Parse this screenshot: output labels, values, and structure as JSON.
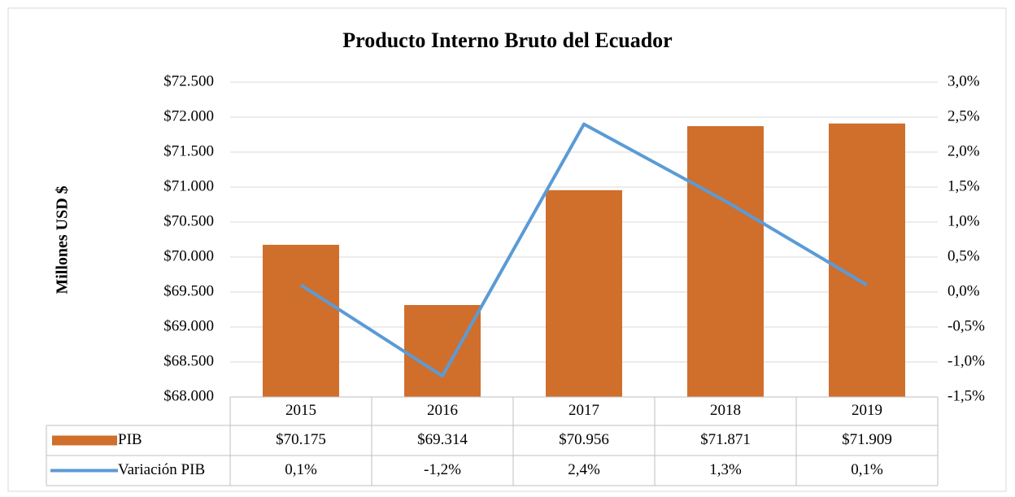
{
  "chart_data": {
    "type": "bar",
    "title": "Producto Interno Bruto del Ecuador",
    "y_label": "Millones USD $",
    "categories": [
      "2015",
      "2016",
      "2017",
      "2018",
      "2019"
    ],
    "series": [
      {
        "name": "PIB",
        "type": "bar",
        "color": "#d06e2c",
        "values": [
          70175,
          69314,
          70956,
          71871,
          71909
        ],
        "value_labels": [
          "$70.175",
          "$69.314",
          "$70.956",
          "$71.871",
          "$71.909"
        ]
      },
      {
        "name": "Variación PIB",
        "type": "line",
        "axis": "y2",
        "color": "#5b9bd5",
        "values": [
          0.1,
          -1.2,
          2.4,
          1.3,
          0.1
        ],
        "value_labels": [
          "0,1%",
          "-1,2%",
          "2,4%",
          "1,3%",
          "0,1%"
        ]
      }
    ],
    "ylim": [
      68000,
      72500
    ],
    "yticks": [
      {
        "value": 68000,
        "label": "$68.000"
      },
      {
        "value": 68500,
        "label": "$68.500"
      },
      {
        "value": 69000,
        "label": "$69.000"
      },
      {
        "value": 69500,
        "label": "$69.500"
      },
      {
        "value": 70000,
        "label": "$70.000"
      },
      {
        "value": 70500,
        "label": "$70.500"
      },
      {
        "value": 71000,
        "label": "$71.000"
      },
      {
        "value": 71500,
        "label": "$71.500"
      },
      {
        "value": 72000,
        "label": "$72.000"
      },
      {
        "value": 72500,
        "label": "$72.500"
      }
    ],
    "y2lim": [
      -1.5,
      3.0
    ],
    "y2ticks": [
      {
        "value": -1.5,
        "label": "-1,5%"
      },
      {
        "value": -1.0,
        "label": "-1,0%"
      },
      {
        "value": -0.5,
        "label": "-0,5%"
      },
      {
        "value": 0,
        "label": "0,0%"
      },
      {
        "value": 0.5,
        "label": "0,5%"
      },
      {
        "value": 1.0,
        "label": "1,0%"
      },
      {
        "value": 1.5,
        "label": "1,5%"
      },
      {
        "value": 2.0,
        "label": "2,0%"
      },
      {
        "value": 2.5,
        "label": "2,5%"
      },
      {
        "value": 3.0,
        "label": "3,0%"
      }
    ],
    "grid": true,
    "data_table": true
  }
}
